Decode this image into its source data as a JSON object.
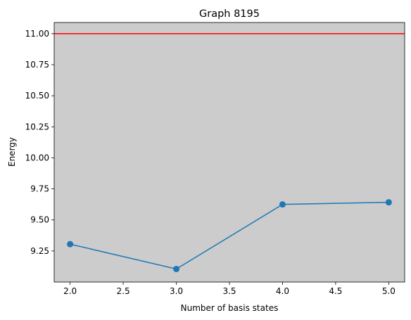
{
  "chart_data": {
    "type": "line",
    "title": "Graph 8195",
    "xlabel": "Number of basis states",
    "ylabel": "Energy",
    "x": [
      2,
      3,
      4,
      5
    ],
    "series": [
      {
        "values": [
          9.305,
          9.105,
          9.625,
          9.642
        ],
        "color": "#1f77b4",
        "marker": "circle"
      }
    ],
    "reference_line": {
      "y": 11.0,
      "color": "#ff0000"
    },
    "xlim": [
      1.85,
      5.15
    ],
    "ylim": [
      9.0,
      11.09
    ],
    "xticks": [
      2.0,
      2.5,
      3.0,
      3.5,
      4.0,
      4.5,
      5.0
    ],
    "xtick_labels": [
      "2.0",
      "2.5",
      "3.0",
      "3.5",
      "4.0",
      "4.5",
      "5.0"
    ],
    "yticks": [
      9.25,
      9.5,
      9.75,
      10.0,
      10.25,
      10.5,
      10.75,
      11.0
    ],
    "ytick_labels": [
      "9.25",
      "9.50",
      "9.75",
      "10.00",
      "10.25",
      "10.50",
      "10.75",
      "11.00"
    ],
    "grid": false,
    "plot_background": "#cccccc"
  }
}
